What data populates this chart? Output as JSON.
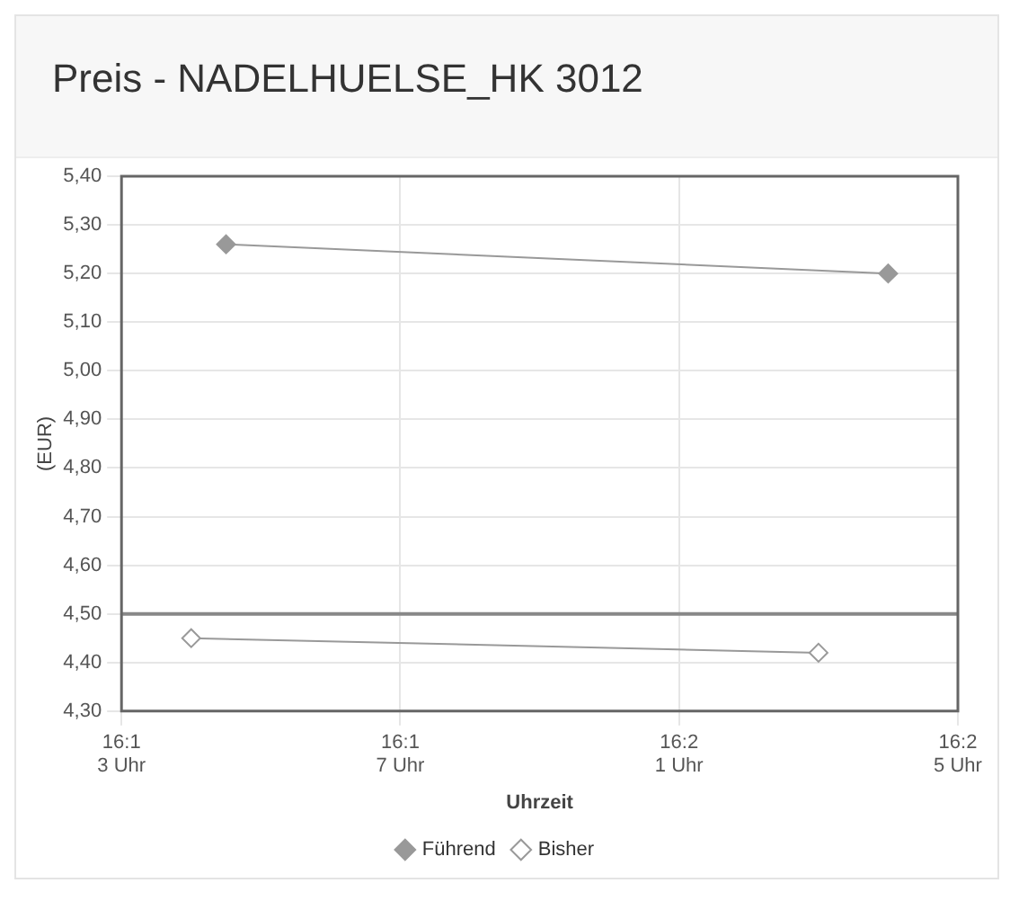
{
  "chart_data": {
    "type": "line",
    "title": "Preis - NADELHUELSE_HK 3012",
    "xlabel": "Uhrzeit",
    "ylabel": "(EUR)",
    "categories": [
      "16:1\n3 Uhr",
      null,
      null,
      null,
      null,
      null,
      null,
      null,
      "16:1\n7 Uhr",
      null,
      null,
      null,
      null,
      null,
      null,
      null,
      "16:2\n1 Uhr",
      null,
      null,
      null,
      null,
      null,
      null,
      null,
      "16:2\n5 Uhr"
    ],
    "series": [
      {
        "name": "Führend",
        "color": "#999999",
        "values": [
          null,
          null,
          null,
          5.26,
          null,
          null,
          null,
          null,
          null,
          null,
          null,
          null,
          null,
          null,
          null,
          null,
          null,
          null,
          null,
          null,
          null,
          null,
          5.2,
          null,
          null
        ]
      },
      {
        "name": "Bisher",
        "color": "#999999",
        "values": [
          null,
          null,
          4.45,
          null,
          null,
          null,
          null,
          null,
          null,
          null,
          null,
          null,
          null,
          null,
          null,
          null,
          null,
          null,
          null,
          null,
          4.42,
          null,
          null,
          null,
          null
        ]
      }
    ],
    "ylim": [
      4.3,
      5.4
    ],
    "yticks": [
      {
        "value": 4.3,
        "label": "4,30"
      },
      {
        "value": 4.4,
        "label": "4,40"
      },
      {
        "value": 4.5,
        "label": "4,50"
      },
      {
        "value": 4.6,
        "label": "4,60"
      },
      {
        "value": 4.7,
        "label": "4,70"
      },
      {
        "value": 4.8,
        "label": "4,80"
      },
      {
        "value": 4.9,
        "label": "4,90"
      },
      {
        "value": 5.0,
        "label": "5,00"
      },
      {
        "value": 5.1,
        "label": "5,10"
      },
      {
        "value": 5.2,
        "label": "5,20"
      },
      {
        "value": 5.3,
        "label": "5,30"
      },
      {
        "value": 5.4,
        "label": "5,40"
      }
    ],
    "ref_lines": [
      {
        "axis": "y",
        "value": 4.5,
        "color": "#888888"
      }
    ],
    "grid": true,
    "legend": "bottom",
    "marker": "diamond",
    "line_style": "solid"
  }
}
